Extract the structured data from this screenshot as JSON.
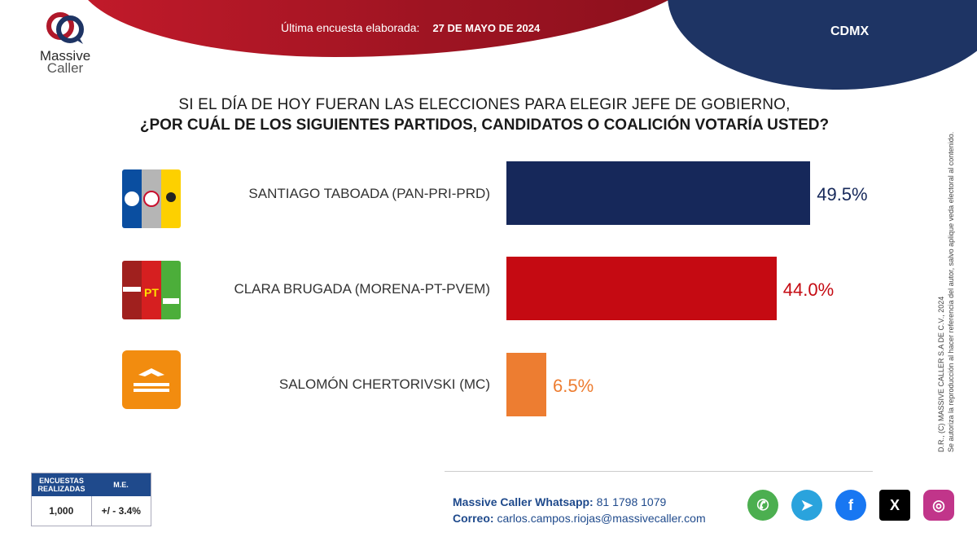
{
  "header": {
    "label": "Última encuesta elaborada:",
    "date": "27 DE MAYO DE 2024",
    "region": "CDMX"
  },
  "logo": {
    "line1": "Massive",
    "line2": "Caller"
  },
  "title": {
    "line1": "SI EL DÍA DE HOY FUERAN LAS ELECCIONES PARA ELEGIR JEFE DE GOBIERNO,",
    "line2": "¿POR CUÁL DE LOS SIGUIENTES PARTIDOS, CANDIDATOS O COALICIÓN VOTARÍA USTED?"
  },
  "colors": {
    "navy": "#16285a",
    "red": "#c50a12",
    "orange": "#ed7d31"
  },
  "chart_data": {
    "type": "bar",
    "orientation": "horizontal",
    "categories": [
      "SANTIAGO TABOADA (PAN-PRI-PRD)",
      "CLARA BRUGADA (MORENA-PT-PVEM)",
      "SALOMÓN CHERTORIVSKI (MC)"
    ],
    "values": [
      49.5,
      44.0,
      6.5
    ],
    "value_labels": [
      "49.5%",
      "44.0%",
      "6.5%"
    ],
    "colors": [
      "#16285a",
      "#c50a12",
      "#ed7d31"
    ],
    "xlim": [
      0,
      50
    ]
  },
  "parties": [
    {
      "badges": [
        "PAN",
        "PRI",
        "PRD"
      ]
    },
    {
      "badges": [
        "morena",
        "PT",
        "VERDE"
      ]
    },
    {
      "badges": [
        "MOVIMIENTO",
        "CIUDADANO"
      ]
    }
  ],
  "copyright": {
    "line1": "D.R., (C) MASSIVE CALLER S.A DE C.V., 2024",
    "line2": "Se autoriza la reproducción al hacer referencia del autor, salvo aplique veda electoral al contenido."
  },
  "stats": {
    "col1_header_line1": "ENCUESTAS",
    "col1_header_line2": "REALIZADAS",
    "col2_header": "M.E.",
    "col1_value": "1,000",
    "col2_value": "+/ - 3.4%"
  },
  "contact": {
    "whatsapp_label": "Massive Caller Whatsapp:",
    "whatsapp_value": "81 1798 1079",
    "email_label": "Correo:",
    "email_value": "carlos.campos.riojas@massivecaller.com"
  },
  "social": [
    {
      "icon": "whatsapp-icon",
      "color": "#4caf50",
      "glyph": "✆"
    },
    {
      "icon": "telegram-icon",
      "color": "#2aa3dd",
      "glyph": "➤"
    },
    {
      "icon": "facebook-icon",
      "color": "#1877f2",
      "glyph": "f"
    },
    {
      "icon": "x-icon",
      "color": "#000000",
      "glyph": "X"
    },
    {
      "icon": "instagram-icon",
      "color": "#c1358a",
      "glyph": "◎"
    }
  ]
}
